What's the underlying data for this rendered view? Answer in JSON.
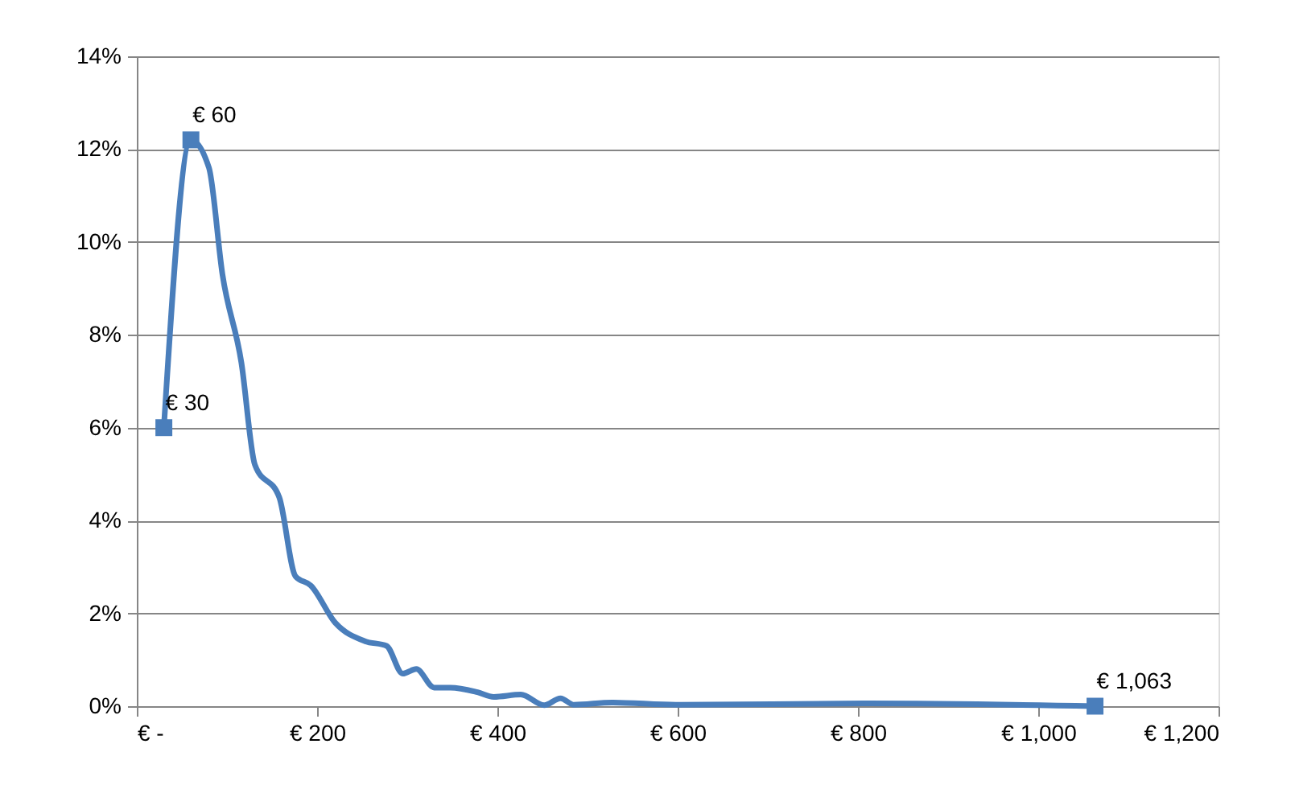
{
  "chart_data": {
    "type": "line",
    "x": [
      30,
      60,
      80,
      95,
      116,
      131,
      158,
      176,
      193,
      220,
      253,
      277,
      295,
      310,
      330,
      348,
      378,
      396,
      426,
      452,
      470,
      485,
      527,
      598,
      812,
      1063
    ],
    "series": [
      {
        "color": "#4a7ebb",
        "marker": "none",
        "values": [
          6,
          12.2,
          11.6,
          9.3,
          7.4,
          5.2,
          4.5,
          2.8,
          2.6,
          1.8,
          1.4,
          1.3,
          0.7,
          0.8,
          0.4,
          0.4,
          0.3,
          0.2,
          0.25,
          0.02,
          0.17,
          0.03,
          0.08,
          0.03,
          0.06,
          0
        ]
      },
      {
        "type": "scatter",
        "color": "#4a7ebb",
        "marker": "square",
        "x": [
          30,
          60,
          1063
        ],
        "values": [
          6,
          12.2,
          0
        ]
      }
    ],
    "annotations": [
      {
        "text": "€ 30",
        "x": 30,
        "y": 6
      },
      {
        "text": "€ 60",
        "x": 60,
        "y": 12.2
      },
      {
        "text": "€ 1,063",
        "x": 1063,
        "y": 0
      }
    ],
    "xlim": [
      0,
      1200
    ],
    "xticks": [
      {
        "value": 0,
        "label": "€ -"
      },
      {
        "value": 200,
        "label": "€ 200"
      },
      {
        "value": 400,
        "label": "€ 400"
      },
      {
        "value": 600,
        "label": "€ 600"
      },
      {
        "value": 800,
        "label": "€ 800"
      },
      {
        "value": 1000,
        "label": "€ 1,000"
      },
      {
        "value": 1200,
        "label": "€ 1,200"
      }
    ],
    "ylim": [
      0,
      14
    ],
    "yticks": [
      {
        "value": 0,
        "label": "0%"
      },
      {
        "value": 2,
        "label": "2%"
      },
      {
        "value": 4,
        "label": "4%"
      },
      {
        "value": 6,
        "label": "6%"
      },
      {
        "value": 8,
        "label": "8%"
      },
      {
        "value": 10,
        "label": "10%"
      },
      {
        "value": 12,
        "label": "12%"
      },
      {
        "value": 14,
        "label": "14%"
      }
    ],
    "grid": "y"
  }
}
